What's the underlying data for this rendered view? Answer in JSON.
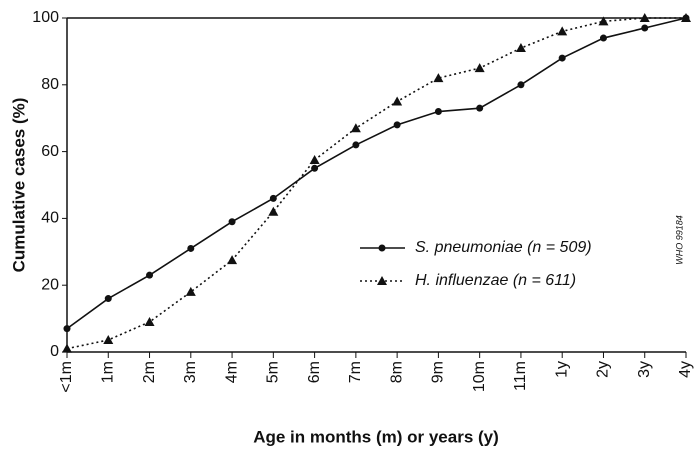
{
  "chart_data": {
    "type": "line",
    "categories": [
      "<1m",
      "1m",
      "2m",
      "3m",
      "4m",
      "5m",
      "6m",
      "7m",
      "8m",
      "9m",
      "10m",
      "11m",
      "1y",
      "2y",
      "3y",
      "4y"
    ],
    "series": [
      {
        "name": "S. pneumoniae (n = 509)",
        "color": "#111111",
        "dash": "solid",
        "marker": "circle",
        "values": [
          7,
          16,
          23,
          31,
          39,
          46,
          55,
          62,
          68,
          72,
          73,
          80,
          88,
          94,
          97,
          100
        ]
      },
      {
        "name": "H. influenzae (n = 611)",
        "color": "#111111",
        "dash": "dotted",
        "marker": "triangle",
        "values": [
          1,
          3.6,
          9,
          18,
          27.5,
          42,
          57.5,
          67,
          75,
          82,
          85,
          91,
          96,
          99,
          100,
          100
        ]
      }
    ],
    "xlabel": "Age in months (m) or years (y)",
    "ylabel": "Cumulative cases (%)",
    "ylim": [
      0,
      100
    ],
    "yticks": [
      0,
      20,
      40,
      60,
      80,
      100
    ],
    "annotation": "WHO 99184"
  }
}
